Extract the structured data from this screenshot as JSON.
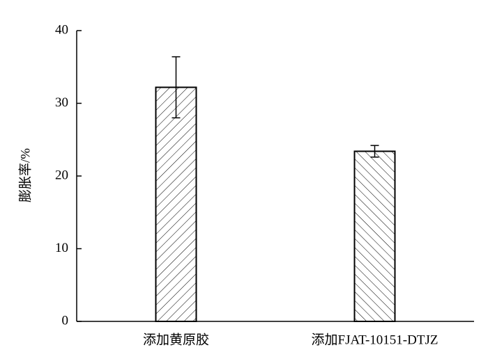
{
  "chart_data": {
    "type": "bar",
    "ylabel": "膨胀率/%",
    "categories": [
      "添加黄原胶",
      "添加FJAT-10151-DTJZ"
    ],
    "values": [
      32.2,
      23.4
    ],
    "errors": [
      4.2,
      0.8
    ],
    "hatch": [
      "forward",
      "backward"
    ],
    "color": "#000000",
    "ylim": [
      0,
      40
    ],
    "yticks": [
      0,
      10,
      20,
      30,
      40
    ]
  }
}
